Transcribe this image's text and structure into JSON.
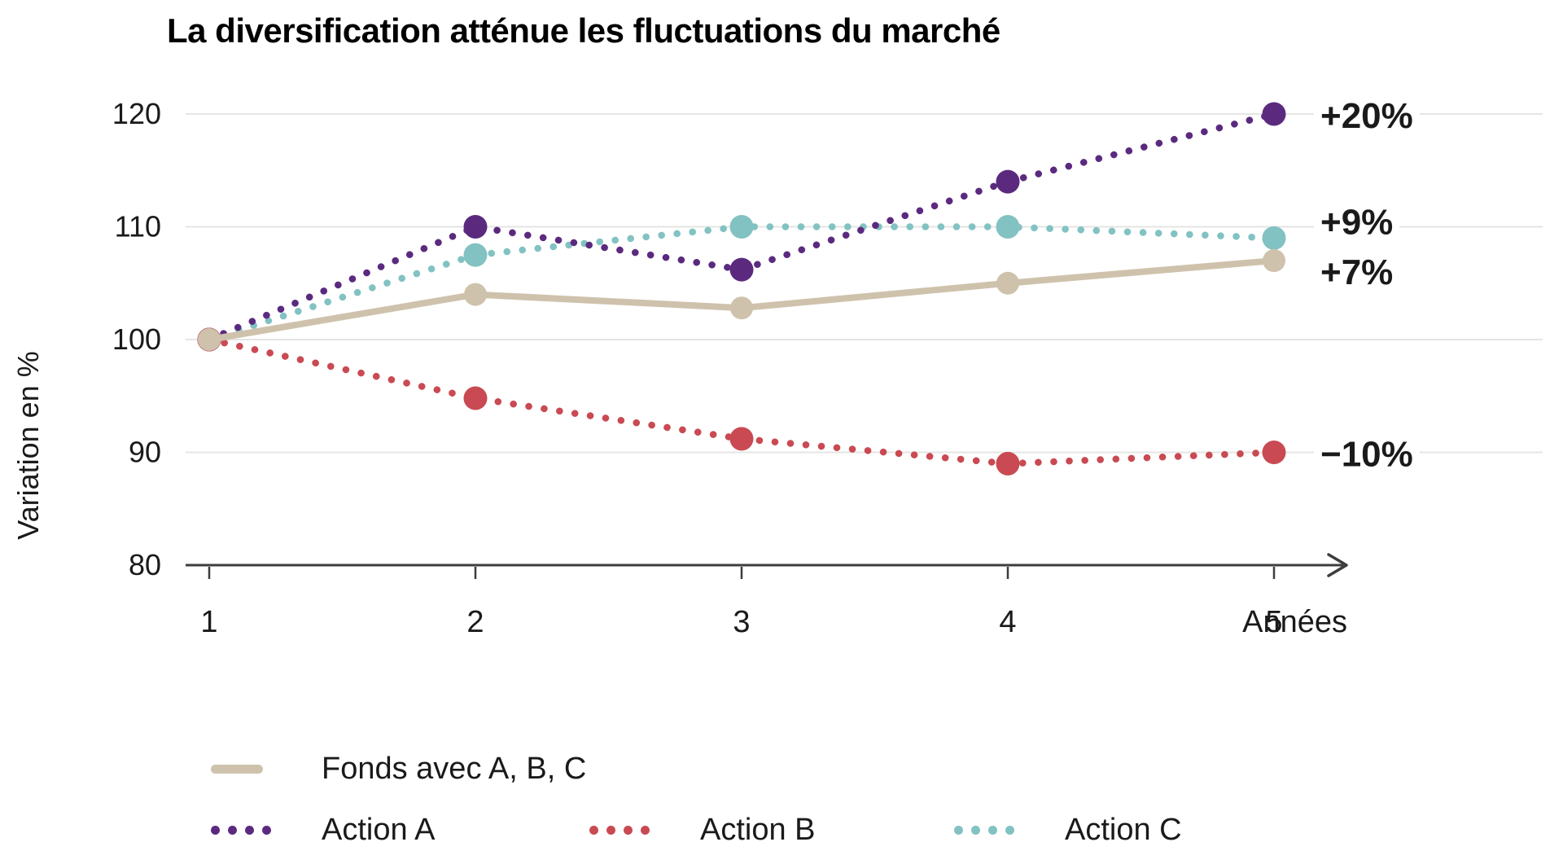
{
  "title": "La diversification atténue les fluctuations du marché",
  "chart_data": {
    "type": "line",
    "x": [
      1,
      2,
      3,
      4,
      5
    ],
    "x_tick_labels": [
      "1",
      "2",
      "3",
      "4",
      "5"
    ],
    "xlabel": "Années",
    "ylabel": "Variation en %",
    "yticks": [
      80,
      90,
      100,
      110,
      120
    ],
    "ylim": [
      80,
      125
    ],
    "grid": "horizontal-only",
    "grid_color": "#e5e5e3",
    "axis_color": "#3d3d3d",
    "text_color": "#1a1a1a",
    "legend_position": "bottom",
    "series": [
      {
        "name": "Fonds avec A, B, C",
        "style": "solid",
        "color": "#cfc2ac",
        "values": [
          100,
          104,
          102.8,
          105,
          107
        ],
        "end_label": "+7%"
      },
      {
        "name": "Action A",
        "style": "dotted",
        "color": "#5b2a7f",
        "values": [
          100,
          110,
          106.2,
          114,
          120
        ],
        "end_label": "+20%"
      },
      {
        "name": "Action B",
        "style": "dotted",
        "color": "#c94a52",
        "values": [
          100,
          94.8,
          91.2,
          89,
          90
        ],
        "end_label": "−10%"
      },
      {
        "name": "Action C",
        "style": "dotted",
        "color": "#82c2c2",
        "values": [
          100,
          107.5,
          110,
          110,
          109
        ],
        "end_label": "+9%"
      }
    ],
    "legend_rows": [
      [
        0
      ],
      [
        1,
        2,
        3
      ]
    ]
  }
}
